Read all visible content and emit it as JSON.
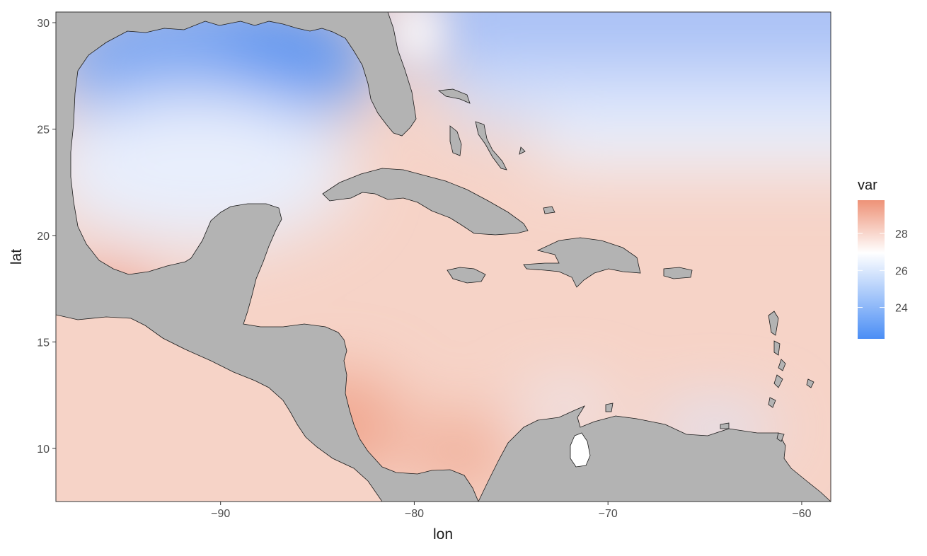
{
  "chart_data": {
    "type": "heatmap",
    "title": "",
    "xlabel": "lon",
    "ylabel": "lat",
    "xlim": [
      -98.5,
      -58.5
    ],
    "ylim": [
      7.5,
      30.5
    ],
    "x_ticks": [
      -90,
      -80,
      -70,
      -60
    ],
    "x_tick_labels": [
      "−90",
      "−80",
      "−70",
      "−60"
    ],
    "y_ticks": [
      10,
      15,
      20,
      25,
      30
    ],
    "y_tick_labels": [
      "10",
      "15",
      "20",
      "25",
      "30"
    ],
    "grid": false,
    "land_color": "#b3b3b3",
    "legend": {
      "title": "var",
      "placement": "right",
      "min": 22.3,
      "max": 29.8,
      "ticks": [
        24,
        26,
        28
      ],
      "tick_labels": [
        "24",
        "26",
        "28"
      ],
      "low_color": "#4b8ef5",
      "mid_color": "#ffffff",
      "high_color": "#ee9277",
      "midpoint": 27
    },
    "field_samples": [
      {
        "lon": -92,
        "lat": 28,
        "value": 23.8
      },
      {
        "lon": -87,
        "lat": 29.5,
        "value": 23.5
      },
      {
        "lon": -85.5,
        "lat": 28,
        "value": 24.6
      },
      {
        "lon": -93,
        "lat": 24,
        "value": 26.3
      },
      {
        "lon": -90,
        "lat": 22.5,
        "value": 26.8
      },
      {
        "lon": -86,
        "lat": 25,
        "value": 27.4
      },
      {
        "lon": -70,
        "lat": 30,
        "value": 24.8
      },
      {
        "lon": -62,
        "lat": 29,
        "value": 24.6
      },
      {
        "lon": -66,
        "lat": 24,
        "value": 26.5
      },
      {
        "lon": -79,
        "lat": 24,
        "value": 27.4
      },
      {
        "lon": -82,
        "lat": 18,
        "value": 28.1
      },
      {
        "lon": -76,
        "lat": 15,
        "value": 28.0
      },
      {
        "lon": -68,
        "lat": 15,
        "value": 27.9
      },
      {
        "lon": -75,
        "lat": 12,
        "value": 27.3
      },
      {
        "lon": -65,
        "lat": 11.5,
        "value": 25.8
      },
      {
        "lon": -95,
        "lat": 14.5,
        "value": 29.3
      },
      {
        "lon": -92,
        "lat": 11,
        "value": 28.4
      },
      {
        "lon": -89.5,
        "lat": 9.5,
        "value": 27.2
      },
      {
        "lon": -85,
        "lat": 9,
        "value": 28.6
      }
    ]
  }
}
